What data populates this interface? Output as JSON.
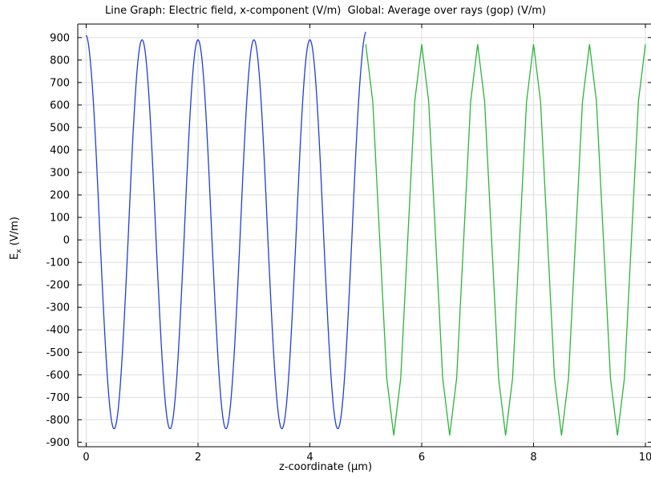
{
  "title": "Line Graph: Electric field, x-component (V/m)  Global: Average over rays (gop) (V/m)",
  "chart_data": {
    "type": "line",
    "title": "Line Graph: Electric field, x-component (V/m)  Global: Average over rays (gop) (V/m)",
    "xlabel": "z-coordinate (µm)",
    "ylabel_main": "E",
    "ylabel_sub": "x",
    "ylabel_unit": " (V/m)",
    "xlim": [
      -0.15,
      10.1
    ],
    "ylim": [
      -920,
      960
    ],
    "x_ticks": [
      0,
      2,
      4,
      6,
      8,
      10
    ],
    "y_ticks": [
      900,
      800,
      700,
      600,
      500,
      400,
      300,
      200,
      100,
      0,
      -100,
      -200,
      -300,
      -400,
      -500,
      -600,
      -700,
      -800,
      -900
    ],
    "grid": true,
    "series": [
      {
        "color": "#1f3fd6",
        "style": "smooth",
        "x_range": [
          0,
          5
        ],
        "period": 1,
        "amp_pos": 890,
        "amp_neg": -840,
        "start_value": 910,
        "end_value": 925
      },
      {
        "color": "#2cb53a",
        "style": "sampled",
        "x_range": [
          5,
          10
        ],
        "period": 1,
        "sample_step": 0.125,
        "amplitude": 870
      }
    ],
    "colors": {
      "grid": "#dddddd",
      "axis": "#000000"
    }
  }
}
